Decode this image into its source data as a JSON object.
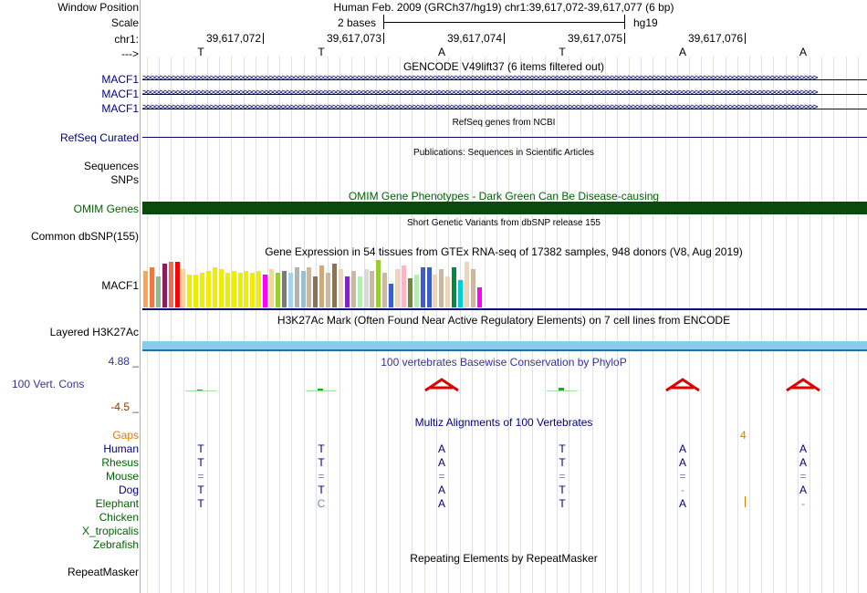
{
  "header": {
    "window_position_label": "Window Position",
    "window_position_value": "Human Feb. 2009 (GRCh37/hg19)   chr1:39,617,072-39,617,077 (6 bp)",
    "scale_label": "Scale",
    "scale_value": "2 bases",
    "scale_assembly": "hg19",
    "chr_label": "chr1:",
    "strand_label": "--->",
    "positions": [
      "39,617,072",
      "39,617,073",
      "39,617,074",
      "39,617,075",
      "39,617,076"
    ],
    "sequence": [
      "T",
      "T",
      "A",
      "T",
      "A",
      "A"
    ]
  },
  "tracks": {
    "gencode": {
      "title": "GENCODE V49lift37 (6 items filtered out)",
      "labels": [
        "MACF1",
        "MACF1",
        "MACF1"
      ],
      "strand_glyph": ">"
    },
    "refseq": {
      "title": "RefSeq genes from NCBI",
      "label": "RefSeq Curated"
    },
    "publications": {
      "title": "Publications: Sequences in Scientific Articles",
      "labels": [
        "Sequences",
        "SNPs"
      ]
    },
    "omim": {
      "title": "OMIM Gene Phenotypes - Dark Green Can Be Disease-causing",
      "label": "OMIM Genes",
      "color": "#0a4a0a"
    },
    "dbsnp": {
      "title": "Short Genetic Variants from dbSNP release 155",
      "label": "Common dbSNP(155)"
    },
    "gtex": {
      "title": "Gene Expression in 54 tissues from GTEx RNA-seq of 17382 samples, 948 donors (V8, Aug 2019)",
      "label": "MACF1",
      "bars": [
        {
          "value": 40,
          "color": "#ffa54f"
        },
        {
          "value": 44,
          "color": "#ee7942"
        },
        {
          "value": 34,
          "color": "#8fbc8f"
        },
        {
          "value": 48,
          "color": "#8b1c62"
        },
        {
          "value": 50,
          "color": "#ee6a50"
        },
        {
          "value": 50,
          "color": "#ff0000"
        },
        {
          "value": 42,
          "color": "#ffd39b"
        },
        {
          "value": 36,
          "color": "#eeee00"
        },
        {
          "value": 36,
          "color": "#eeee00"
        },
        {
          "value": 38,
          "color": "#eeee00"
        },
        {
          "value": 40,
          "color": "#eeee00"
        },
        {
          "value": 44,
          "color": "#eeee00"
        },
        {
          "value": 42,
          "color": "#eeee00"
        },
        {
          "value": 38,
          "color": "#eeee00"
        },
        {
          "value": 40,
          "color": "#eeee00"
        },
        {
          "value": 38,
          "color": "#eeee00"
        },
        {
          "value": 40,
          "color": "#eeee00"
        },
        {
          "value": 38,
          "color": "#eeee00"
        },
        {
          "value": 40,
          "color": "#eeee00"
        },
        {
          "value": 36,
          "color": "#ff00ff"
        },
        {
          "value": 42,
          "color": "#eedd82"
        },
        {
          "value": 38,
          "color": "#9acd32"
        },
        {
          "value": 40,
          "color": "#7a7a7a"
        },
        {
          "value": 38,
          "color": "#a4d3ee"
        },
        {
          "value": 44,
          "color": "#b3b3b3"
        },
        {
          "value": 40,
          "color": "#9ac0cd"
        },
        {
          "value": 44,
          "color": "#cdb79e"
        },
        {
          "value": 34,
          "color": "#8b7355"
        },
        {
          "value": 46,
          "color": "#cdaa7d"
        },
        {
          "value": 38,
          "color": "#cdb79e"
        },
        {
          "value": 48,
          "color": "#8b7355"
        },
        {
          "value": 42,
          "color": "#eed5b7"
        },
        {
          "value": 34,
          "color": "#7d26cd"
        },
        {
          "value": 40,
          "color": "#cdb79e"
        },
        {
          "value": 34,
          "color": "#b4eeb4"
        },
        {
          "value": 42,
          "color": "#d9d9d9"
        },
        {
          "value": 40,
          "color": "#cdb79e"
        },
        {
          "value": 52,
          "color": "#9acd32"
        },
        {
          "value": 38,
          "color": "#cdb79e"
        },
        {
          "value": 26,
          "color": "#3a5fcd"
        },
        {
          "value": 42,
          "color": "#eed5b7"
        },
        {
          "value": 46,
          "color": "#ffb6c1"
        },
        {
          "value": 32,
          "color": "#6e8b3d"
        },
        {
          "value": 36,
          "color": "#b4eeb4"
        },
        {
          "value": 44,
          "color": "#3a5fcd"
        },
        {
          "value": 44,
          "color": "#3a5fcd"
        },
        {
          "value": 36,
          "color": "#eed5b7"
        },
        {
          "value": 42,
          "color": "#cdb79e"
        },
        {
          "value": 34,
          "color": "#eed5b7"
        },
        {
          "value": 44,
          "color": "#008b45"
        },
        {
          "value": 30,
          "color": "#00cdcd"
        },
        {
          "value": 50,
          "color": "#eed5b7"
        },
        {
          "value": 42,
          "color": "#cdb79e"
        },
        {
          "value": 22,
          "color": "#ff00ff"
        }
      ]
    },
    "h3k27ac": {
      "title": "H3K27Ac Mark (Often Found Near Active Regulatory Elements) on 7 cell lines from ENCODE",
      "label": "Layered H3K27Ac",
      "color": "#87ceeb"
    },
    "phylop": {
      "title": "100 vertebrates Basewise Conservation by PhyloP",
      "label": "100 Vert. Cons",
      "ymax": "4.88 _",
      "ymin": "-4.5 _",
      "scores": [
        0.05,
        0.12,
        -4.3,
        0.2,
        -4.3,
        -4.3
      ]
    },
    "multiz": {
      "title": "Multiz Alignments of 100 Vertebrates",
      "gaps_label": "Gaps",
      "gaps_value": "4",
      "species": [
        {
          "name": "Human",
          "bases": [
            "T",
            "T",
            "A",
            "T",
            "A",
            "A"
          ]
        },
        {
          "name": "Rhesus",
          "bases": [
            "T",
            "T",
            "A",
            "T",
            "A",
            "A"
          ]
        },
        {
          "name": "Mouse",
          "bases": [
            "=",
            "=",
            "=",
            "=",
            "=",
            "="
          ]
        },
        {
          "name": "Dog",
          "bases": [
            "T",
            "T",
            "A",
            "T",
            "-",
            "A"
          ]
        },
        {
          "name": "Elephant",
          "bases": [
            "T",
            "C",
            "A",
            "T",
            "A",
            "-"
          ]
        },
        {
          "name": "Chicken",
          "bases": []
        },
        {
          "name": "X_tropicalis",
          "bases": []
        },
        {
          "name": "Zebrafish",
          "bases": []
        }
      ]
    },
    "repeatmasker": {
      "title": "Repeating Elements by RepeatMasker",
      "label": "RepeatMasker"
    }
  },
  "colors": {
    "navy": "#000080",
    "green": "#006400",
    "brown": "#8b3a00",
    "orange": "#d58000",
    "gene": "#000080",
    "phylop_pos": "#00c000",
    "phylop_neg": "#e00000",
    "gridline": "#dfe0ee"
  }
}
